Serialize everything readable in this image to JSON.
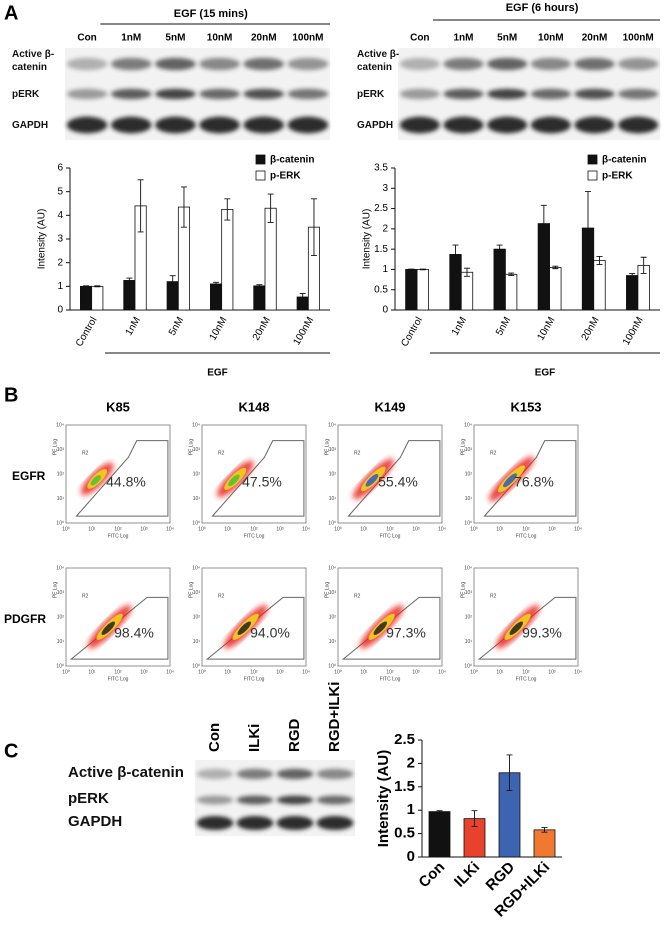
{
  "panels": [
    "A",
    "B",
    "C"
  ],
  "blots": [
    {
      "header": "EGF (15 mins)",
      "lanes": [
        "Con",
        "1nM",
        "5nM",
        "10nM",
        "20nM",
        "100nM"
      ],
      "rows": [
        "Active β-catenin",
        "pERK",
        "GAPDH"
      ]
    },
    {
      "header": "EGF (6 hours)",
      "lanes": [
        "Con",
        "1nM",
        "5nM",
        "10nM",
        "20nM",
        "100nM"
      ],
      "rows": [
        "Active β-catenin",
        "pERK",
        "GAPDH"
      ]
    },
    {
      "lanes": [
        "Con",
        "ILKi",
        "RGD",
        "RGD+ILKi"
      ],
      "rows": [
        "Active β-catenin",
        "pERK",
        "GAPDH"
      ]
    }
  ],
  "chart_data": [
    {
      "type": "bar",
      "y_label": "Intensity (AU)",
      "group_label": "EGF",
      "categories": [
        "Control",
        "1nM",
        "5nM",
        "10nM",
        "20nM",
        "100nM"
      ],
      "series": [
        {
          "name": "β-catenin",
          "color": "#111111",
          "values": [
            1,
            1.25,
            1.2,
            1.1,
            1.02,
            0.55
          ],
          "errors": [
            0.02,
            0.1,
            0.25,
            0.07,
            0.05,
            0.15
          ]
        },
        {
          "name": "p-ERK",
          "color": "#ffffff",
          "values": [
            1,
            4.4,
            4.35,
            4.25,
            4.3,
            3.5
          ],
          "errors": [
            0.02,
            1.1,
            0.85,
            0.45,
            0.6,
            1.2
          ]
        }
      ],
      "ylim": [
        0,
        6
      ],
      "yticks": [
        0,
        1,
        2,
        3,
        4,
        5,
        6
      ],
      "legend": "upper right"
    },
    {
      "type": "bar",
      "y_label": "Intensity (AU)",
      "group_label": "EGF",
      "categories": [
        "Control",
        "1nM",
        "5nM",
        "10nM",
        "20nM",
        "100nM"
      ],
      "series": [
        {
          "name": "β-catenin",
          "color": "#111111",
          "values": [
            1,
            1.37,
            1.5,
            2.13,
            2.02,
            0.85
          ],
          "errors": [
            0.01,
            0.23,
            0.1,
            0.45,
            0.9,
            0.05
          ]
        },
        {
          "name": "p-ERK",
          "color": "#ffffff",
          "values": [
            1,
            0.93,
            0.88,
            1.05,
            1.22,
            1.1
          ],
          "errors": [
            0.01,
            0.1,
            0.03,
            0.03,
            0.1,
            0.2
          ]
        }
      ],
      "ylim": [
        0,
        3.5
      ],
      "yticks": [
        0,
        0.5,
        1,
        1.5,
        2,
        2.5,
        3,
        3.5
      ],
      "legend": "upper right"
    },
    {
      "type": "bar",
      "y_label": "Intensity (AU)",
      "categories": [
        "Con",
        "ILKi",
        "RGD",
        "RGD+ILKi"
      ],
      "values": [
        0.97,
        0.82,
        1.8,
        0.58
      ],
      "errors": [
        0.02,
        0.17,
        0.38,
        0.05
      ],
      "colors": [
        "#111111",
        "#e8412c",
        "#3c64b0",
        "#f07830"
      ],
      "ylim": [
        0,
        2.5
      ],
      "yticks": [
        0,
        0.5,
        1,
        1.5,
        2,
        2.5
      ]
    }
  ],
  "flow": {
    "columns": [
      "K85",
      "K148",
      "K149",
      "K153"
    ],
    "rows": [
      "EGFR",
      "PDGFR"
    ],
    "values": [
      [
        "44.8%",
        "47.5%",
        "55.4%",
        "76.8%"
      ],
      [
        "98.4%",
        "94.0%",
        "97.3%",
        "99.3%"
      ]
    ],
    "gate": "R2",
    "x_label": "FITC Log",
    "y_label": "PE Log",
    "ticks": [
      "10⁰",
      "10¹",
      "10²",
      "10³",
      "10⁴"
    ]
  }
}
